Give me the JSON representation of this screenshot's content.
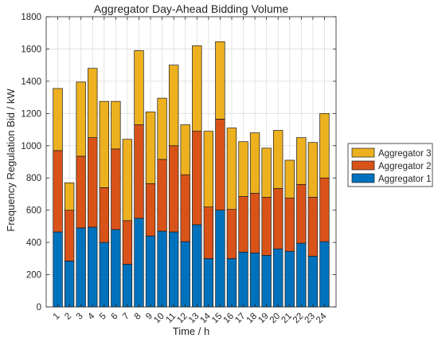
{
  "chart_data": {
    "type": "bar",
    "stacked": true,
    "title": "Aggregator Day-Ahead Bidding Volume",
    "xlabel": "Time / h",
    "ylabel": "Frequency Regulation Bid / kW",
    "ylim": [
      0,
      1800
    ],
    "yticks": [
      0,
      200,
      400,
      600,
      800,
      1000,
      1200,
      1400,
      1600,
      1800
    ],
    "grid": true,
    "legend_position": "right",
    "categories": [
      "1",
      "2",
      "3",
      "4",
      "5",
      "6",
      "7",
      "8",
      "9",
      "10",
      "11",
      "12",
      "13",
      "14",
      "15",
      "16",
      "17",
      "18",
      "19",
      "20",
      "21",
      "22",
      "23",
      "24"
    ],
    "series": [
      {
        "name": "Aggregator 1",
        "color": "#0072BD",
        "values": [
          465,
          285,
          490,
          495,
          400,
          480,
          265,
          550,
          440,
          470,
          465,
          405,
          510,
          300,
          600,
          300,
          340,
          335,
          320,
          360,
          345,
          395,
          315,
          405
        ]
      },
      {
        "name": "Aggregator 2",
        "color": "#D95319",
        "values": [
          505,
          315,
          445,
          555,
          340,
          500,
          270,
          580,
          325,
          445,
          535,
          415,
          580,
          320,
          565,
          305,
          345,
          370,
          360,
          375,
          330,
          365,
          365,
          395
        ]
      },
      {
        "name": "Aggregator 3",
        "color": "#EDB120",
        "values": [
          385,
          170,
          460,
          430,
          535,
          295,
          505,
          460,
          445,
          380,
          500,
          310,
          530,
          470,
          480,
          505,
          340,
          375,
          305,
          360,
          235,
          290,
          340,
          400
        ]
      }
    ]
  }
}
